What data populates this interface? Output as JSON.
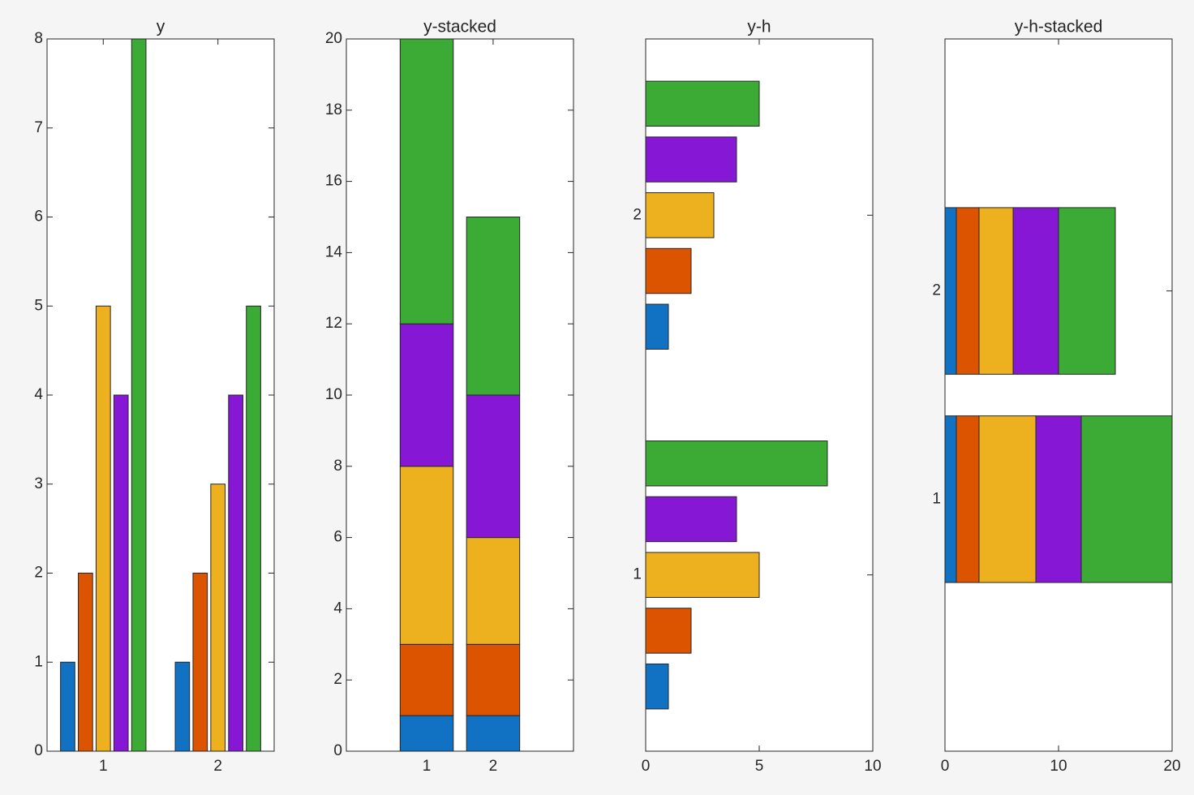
{
  "chart_data": [
    {
      "type": "bar",
      "title": "y",
      "stacked": false,
      "horizontal": false,
      "categories": [
        "1",
        "2"
      ],
      "series": [
        {
          "color": "#1171c2",
          "values": [
            1,
            1
          ]
        },
        {
          "color": "#dd5400",
          "values": [
            2,
            2
          ]
        },
        {
          "color": "#edb120",
          "values": [
            5,
            3
          ]
        },
        {
          "color": "#8617d5",
          "values": [
            4,
            4
          ]
        },
        {
          "color": "#3bab35",
          "values": [
            8,
            5
          ]
        }
      ],
      "ylim": [
        0,
        8
      ],
      "yticks": [
        0,
        1,
        2,
        3,
        4,
        5,
        6,
        7,
        8
      ]
    },
    {
      "type": "bar",
      "title": "y-stacked",
      "stacked": true,
      "horizontal": false,
      "categories": [
        "1",
        "2"
      ],
      "series": [
        {
          "color": "#1171c2",
          "values": [
            1,
            1
          ]
        },
        {
          "color": "#dd5400",
          "values": [
            2,
            2
          ]
        },
        {
          "color": "#edb120",
          "values": [
            5,
            3
          ]
        },
        {
          "color": "#8617d5",
          "values": [
            4,
            4
          ]
        },
        {
          "color": "#3bab35",
          "values": [
            8,
            5
          ]
        }
      ],
      "ylim": [
        0,
        20
      ],
      "yticks": [
        0,
        2,
        4,
        6,
        8,
        10,
        12,
        14,
        16,
        18,
        20
      ]
    },
    {
      "type": "bar",
      "title": "y-h",
      "stacked": false,
      "horizontal": true,
      "categories": [
        "1",
        "2"
      ],
      "series": [
        {
          "color": "#1171c2",
          "values": [
            1,
            1
          ]
        },
        {
          "color": "#dd5400",
          "values": [
            2,
            2
          ]
        },
        {
          "color": "#edb120",
          "values": [
            5,
            3
          ]
        },
        {
          "color": "#8617d5",
          "values": [
            4,
            4
          ]
        },
        {
          "color": "#3bab35",
          "values": [
            8,
            5
          ]
        }
      ],
      "xlim": [
        0,
        10
      ],
      "xticks": [
        0,
        5,
        10
      ]
    },
    {
      "type": "bar",
      "title": "y-h-stacked",
      "stacked": true,
      "horizontal": true,
      "categories": [
        "1",
        "2"
      ],
      "series": [
        {
          "color": "#1171c2",
          "values": [
            1,
            1
          ]
        },
        {
          "color": "#dd5400",
          "values": [
            2,
            2
          ]
        },
        {
          "color": "#edb120",
          "values": [
            5,
            3
          ]
        },
        {
          "color": "#8617d5",
          "values": [
            4,
            4
          ]
        },
        {
          "color": "#3bab35",
          "values": [
            8,
            5
          ]
        }
      ],
      "xlim": [
        0,
        20
      ],
      "xticks": [
        0,
        10,
        20
      ]
    }
  ]
}
